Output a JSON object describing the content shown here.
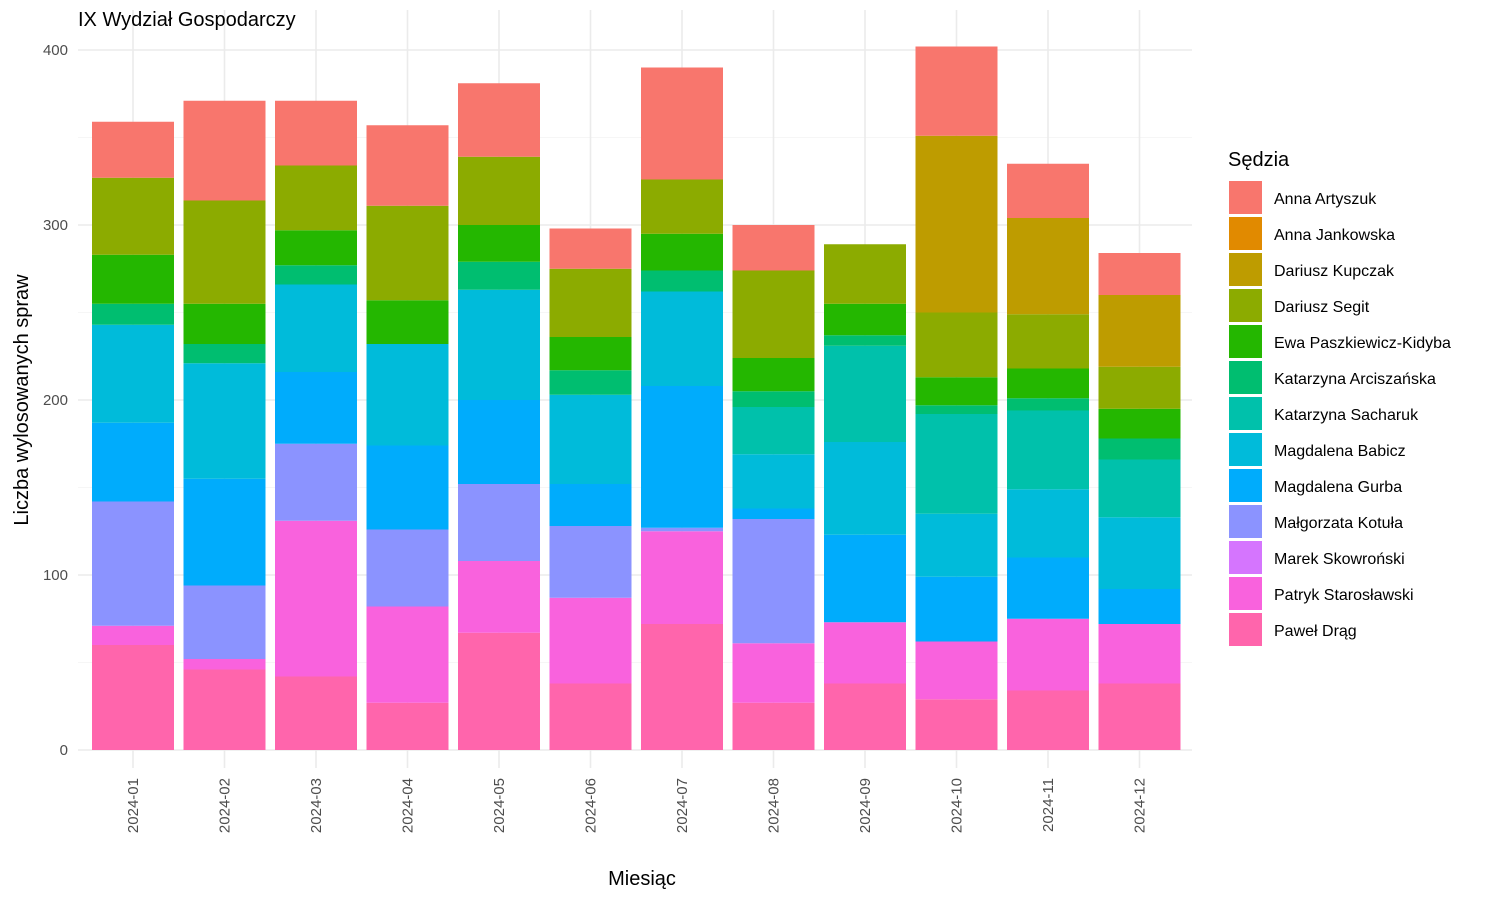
{
  "chart_data": {
    "type": "bar",
    "stacked": true,
    "title": "IX Wydział Gospodarczy",
    "xlabel": "Miesiąc",
    "ylabel": "Liczba wylosowanych spraw",
    "ylim": [
      0,
      420
    ],
    "yticks": [
      0,
      100,
      200,
      300,
      400
    ],
    "grid": true,
    "legend_title": "Sędzia",
    "legend_position": "right",
    "categories": [
      "2024-01",
      "2024-02",
      "2024-03",
      "2024-04",
      "2024-05",
      "2024-06",
      "2024-07",
      "2024-08",
      "2024-09",
      "2024-10",
      "2024-11",
      "2024-12"
    ],
    "series": [
      {
        "name": "Anna Artyszuk",
        "color": "#F8766D",
        "values": [
          32,
          57,
          37,
          46,
          42,
          23,
          64,
          26,
          0,
          51,
          31,
          24
        ]
      },
      {
        "name": "Anna Jankowska",
        "color": "#E18A00",
        "values": [
          0,
          0,
          0,
          0,
          0,
          0,
          0,
          0,
          0,
          0,
          0,
          0
        ]
      },
      {
        "name": "Dariusz Kupczak",
        "color": "#BE9C00",
        "values": [
          0,
          0,
          0,
          0,
          0,
          0,
          0,
          0,
          0,
          101,
          55,
          41
        ]
      },
      {
        "name": "Dariusz Segit",
        "color": "#8CAB00",
        "values": [
          44,
          59,
          37,
          54,
          39,
          39,
          31,
          50,
          34,
          37,
          31,
          24
        ]
      },
      {
        "name": "Ewa Paszkiewicz-Kidyba",
        "color": "#24B700",
        "values": [
          28,
          23,
          20,
          25,
          21,
          19,
          21,
          19,
          18,
          16,
          17,
          17
        ]
      },
      {
        "name": "Katarzyna Arciszańska",
        "color": "#00BE70",
        "values": [
          12,
          11,
          11,
          0,
          16,
          14,
          12,
          9,
          6,
          5,
          7,
          12
        ]
      },
      {
        "name": "Katarzyna Sacharuk",
        "color": "#00C1AB",
        "values": [
          0,
          0,
          0,
          0,
          0,
          0,
          0,
          27,
          55,
          57,
          45,
          33
        ]
      },
      {
        "name": "Magdalena Babicz",
        "color": "#00BBDA",
        "values": [
          56,
          66,
          50,
          58,
          63,
          51,
          54,
          31,
          53,
          36,
          39,
          41
        ]
      },
      {
        "name": "Magdalena Gurba",
        "color": "#00ACFC",
        "values": [
          45,
          61,
          41,
          48,
          48,
          24,
          81,
          6,
          50,
          37,
          35,
          20
        ]
      },
      {
        "name": "Małgorzata Kotuła",
        "color": "#8B93FF",
        "values": [
          71,
          42,
          44,
          44,
          44,
          41,
          2,
          71,
          0,
          0,
          0,
          0
        ]
      },
      {
        "name": "Marek Skowroński",
        "color": "#D575FE",
        "values": [
          0,
          0,
          0,
          0,
          0,
          0,
          0,
          0,
          0,
          0,
          0,
          0
        ]
      },
      {
        "name": "Patryk Starosławski",
        "color": "#F962DD",
        "values": [
          11,
          6,
          89,
          55,
          41,
          49,
          53,
          34,
          35,
          33,
          41,
          34
        ]
      },
      {
        "name": "Paweł Drąg",
        "color": "#FF65AC",
        "values": [
          60,
          46,
          42,
          27,
          67,
          38,
          72,
          27,
          38,
          29,
          34,
          38
        ]
      }
    ]
  }
}
